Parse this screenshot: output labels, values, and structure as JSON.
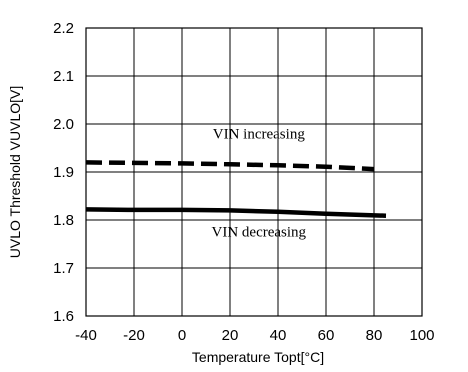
{
  "chart_data": {
    "type": "line",
    "title": "",
    "xlabel": "Temperature Topt[°C]",
    "ylabel": "UVLO Threshold VUVLO[V]",
    "xlim": [
      -40,
      100
    ],
    "ylim": [
      1.6,
      2.2
    ],
    "x_ticks": [
      "-40",
      "-20",
      "0",
      "20",
      "40",
      "60",
      "80",
      "100"
    ],
    "y_ticks": [
      "1.6",
      "1.7",
      "1.8",
      "1.9",
      "2.0",
      "2.1",
      "2.2"
    ],
    "grid": true,
    "legend": "none",
    "series": [
      {
        "name": "VIN increasing",
        "style": "dashed",
        "x": [
          -40,
          -20,
          0,
          20,
          40,
          60,
          80
        ],
        "y": [
          1.92,
          1.919,
          1.918,
          1.916,
          1.914,
          1.911,
          1.906
        ]
      },
      {
        "name": "VIN decreasing",
        "style": "solid",
        "x": [
          -40,
          -20,
          0,
          20,
          40,
          60,
          85
        ],
        "y": [
          1.822,
          1.821,
          1.821,
          1.82,
          1.817,
          1.813,
          1.809
        ]
      }
    ],
    "annotations": [
      {
        "text": "VIN increasing",
        "x": 32,
        "y": 1.97
      },
      {
        "text": "VIN decreasing",
        "x": 32,
        "y": 1.766
      }
    ],
    "colors": {
      "line": "#000000",
      "grid": "#000000",
      "background": "#ffffff"
    }
  }
}
